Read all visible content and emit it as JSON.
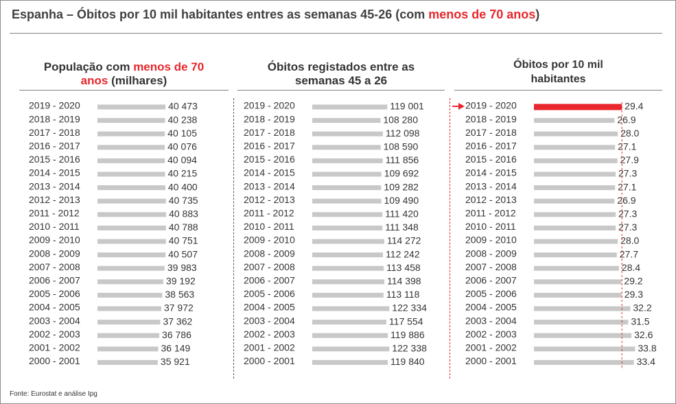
{
  "title": {
    "part1": "Espanha – Óbitos por 10 mil habitantes entres as semanas 45-26 (com ",
    "highlight": "menos de 70 anos",
    "part2": ")"
  },
  "footer": "Fonte: Eurostat e análise Ipg",
  "colors": {
    "bar": "#c8c8c8",
    "highlight": "#e8262b",
    "text": "#333333"
  },
  "chart_data": [
    {
      "type": "bar",
      "orientation": "horizontal",
      "title_parts": {
        "pre": "População com ",
        "highlight": "menos de 70",
        "highlight2": "anos",
        "post": " (milhares)"
      },
      "categories": [
        "2019 - 2020",
        "2018 - 2019",
        "2017 - 2018",
        "2016 - 2017",
        "2015 - 2016",
        "2014 - 2015",
        "2013 - 2014",
        "2012 - 2013",
        "2011 - 2012",
        "2010 - 2011",
        "2009 - 2010",
        "2008 - 2009",
        "2007 - 2008",
        "2006 - 2007",
        "2005 - 2006",
        "2004 - 2005",
        "2003 - 2004",
        "2002 - 2003",
        "2001 - 2002",
        "2000 - 2001"
      ],
      "values": [
        40473,
        40238,
        40105,
        40076,
        40094,
        40215,
        40400,
        40735,
        40883,
        40788,
        40751,
        40507,
        39983,
        39192,
        38563,
        37972,
        37362,
        36786,
        36149,
        35921
      ],
      "labels": [
        "40 473",
        "40 238",
        "40 105",
        "40 076",
        "40 094",
        "40 215",
        "40 400",
        "40 735",
        "40 883",
        "40 788",
        "40 751",
        "40 507",
        "39 983",
        "39 192",
        "38 563",
        "37 972",
        "37 362",
        "36 786",
        "36 149",
        "35 921"
      ]
    },
    {
      "type": "bar",
      "orientation": "horizontal",
      "title_lines": [
        "Óbitos registados entre as",
        "semanas 45 a 26"
      ],
      "categories": [
        "2019 - 2020",
        "2018 - 2019",
        "2017 - 2018",
        "2016 - 2017",
        "2015 - 2016",
        "2014 - 2015",
        "2013 - 2014",
        "2012 - 2013",
        "2011 - 2012",
        "2010 - 2011",
        "2009 - 2010",
        "2008 - 2009",
        "2007 - 2008",
        "2006 - 2007",
        "2005 - 2006",
        "2004 - 2005",
        "2003 - 2004",
        "2002 - 2003",
        "2001 - 2002",
        "2000 - 2001"
      ],
      "values": [
        119001,
        108280,
        112098,
        108590,
        111856,
        109692,
        109282,
        109490,
        111420,
        111348,
        114272,
        112242,
        113458,
        114398,
        113118,
        122334,
        117554,
        119886,
        122338,
        119840
      ],
      "labels": [
        "119 001",
        "108 280",
        "112 098",
        "108 590",
        "111 856",
        "109 692",
        "109 282",
        "109 490",
        "111 420",
        "111 348",
        "114 272",
        "112 242",
        "113 458",
        "114 398",
        "113 118",
        "122 334",
        "117 554",
        "119 886",
        "122 338",
        "119 840"
      ]
    },
    {
      "type": "bar",
      "orientation": "horizontal",
      "title_lines": [
        "Óbitos por 10 mil",
        "habitantes"
      ],
      "categories": [
        "2019 - 2020",
        "2018 - 2019",
        "2017 - 2018",
        "2016 - 2017",
        "2015 - 2016",
        "2014 - 2015",
        "2013 - 2014",
        "2012 - 2013",
        "2011 - 2012",
        "2010 - 2011",
        "2009 - 2010",
        "2008 - 2009",
        "2007 - 2008",
        "2006 - 2007",
        "2005 - 2006",
        "2004 - 2005",
        "2003 - 2004",
        "2002 - 2003",
        "2001 - 2002",
        "2000 - 2001"
      ],
      "values": [
        29.4,
        26.9,
        28.0,
        27.1,
        27.9,
        27.3,
        27.1,
        26.9,
        27.3,
        27.3,
        28.0,
        27.7,
        28.4,
        29.2,
        29.3,
        32.2,
        31.5,
        32.6,
        33.8,
        33.4
      ],
      "labels": [
        "29.4",
        "26.9",
        "28.0",
        "27.1",
        "27.9",
        "27.3",
        "27.1",
        "26.9",
        "27.3",
        "27.3",
        "28.0",
        "27.7",
        "28.4",
        "29.2",
        "29.3",
        "32.2",
        "31.5",
        "32.6",
        "33.8",
        "33.4"
      ],
      "highlight_index": 0,
      "reference_value": 29.4
    }
  ]
}
